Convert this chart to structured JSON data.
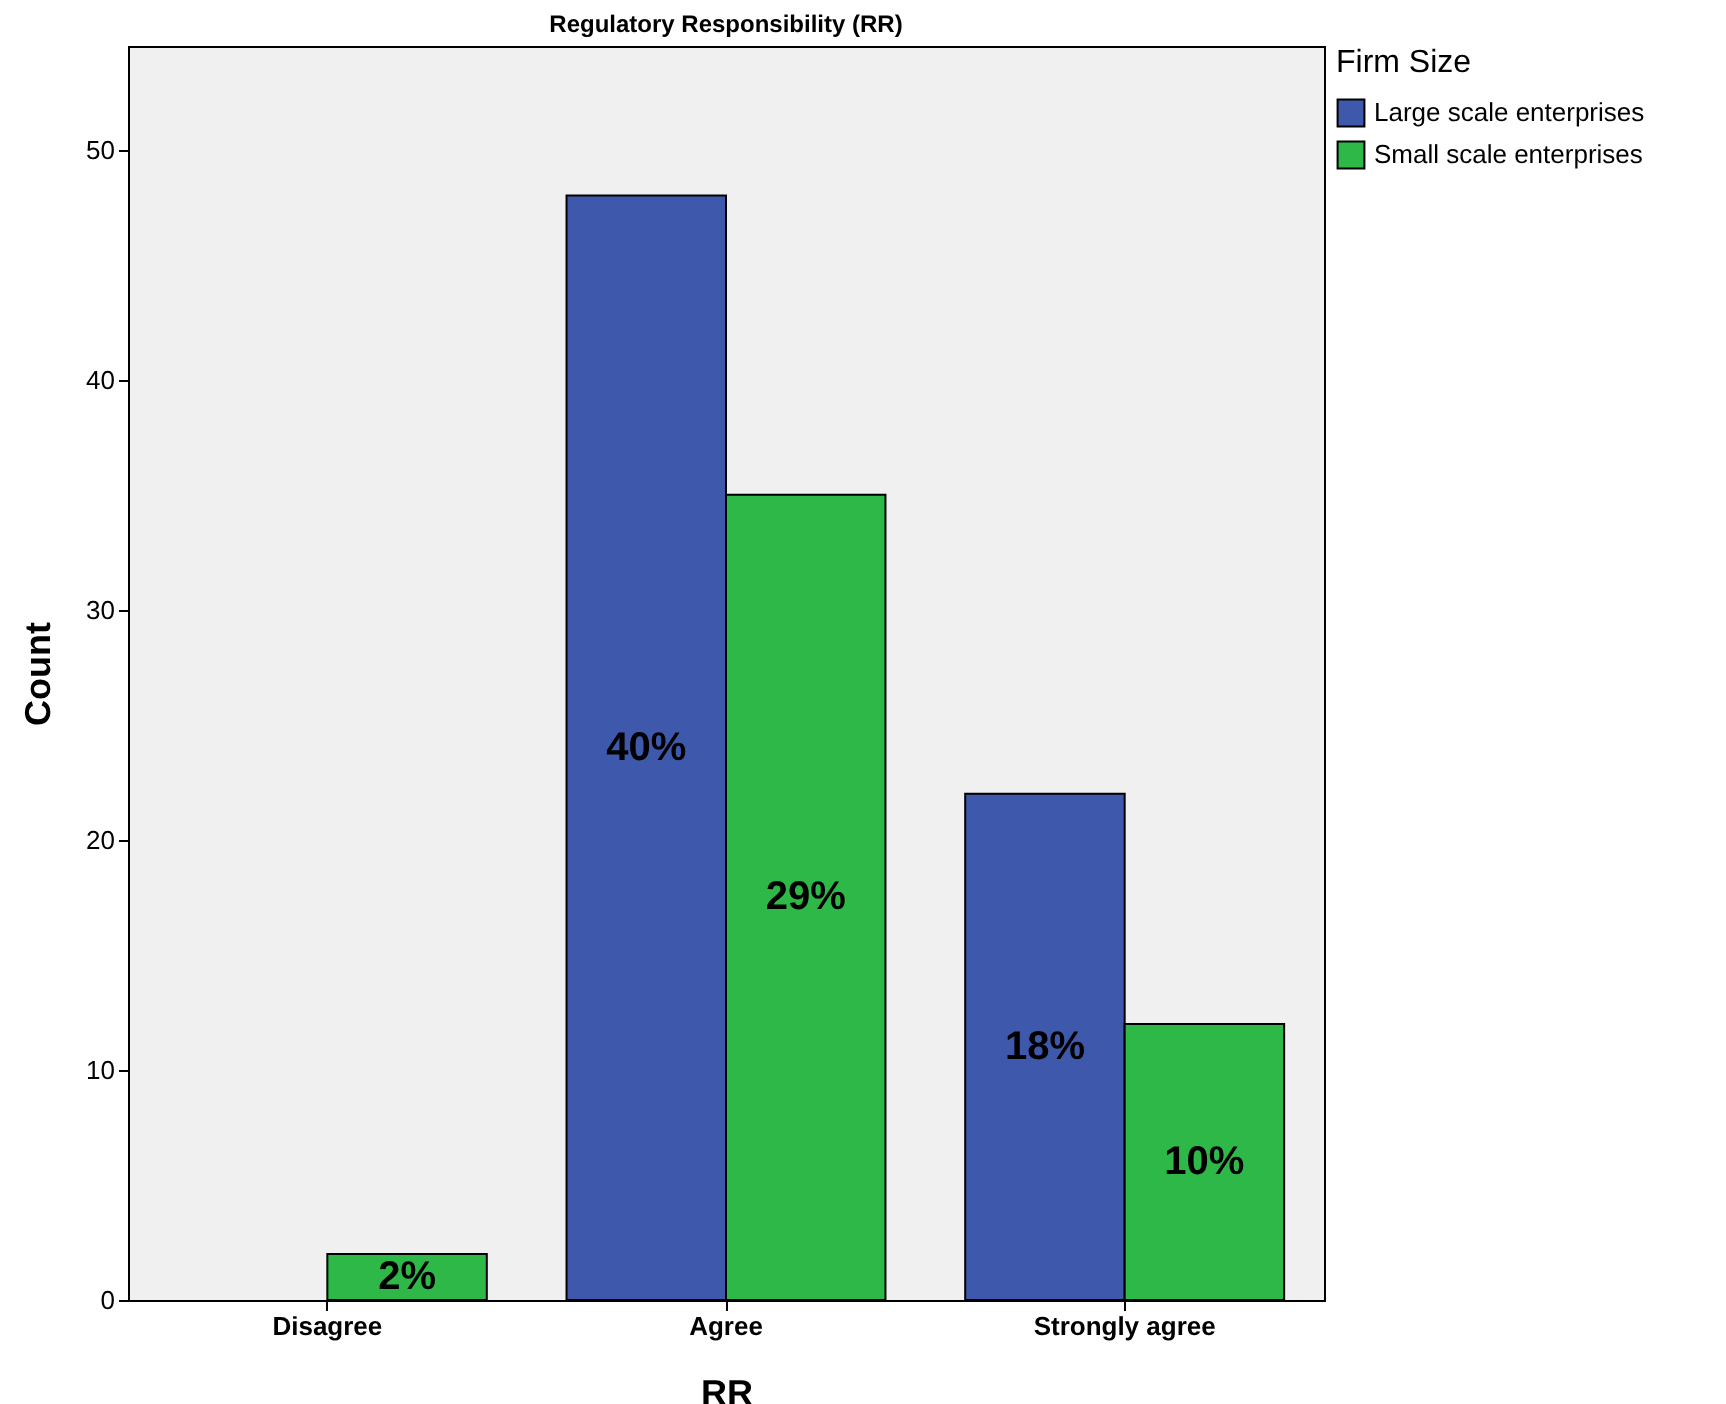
{
  "chart_data": {
    "type": "bar",
    "title": "Regulatory Responsibility (RR)",
    "xlabel": "RR",
    "ylabel": "Count",
    "legend_title": "Firm Size",
    "legend": "top right",
    "grid": false,
    "categories": [
      "Disagree",
      "Agree",
      "Strongly agree"
    ],
    "ylim": [
      0,
      54.5
    ],
    "yticks": [
      0,
      10,
      20,
      30,
      40,
      50
    ],
    "annotations": [
      {
        "text": "40%",
        "x": "Agree",
        "y": 24
      },
      {
        "text": "18%",
        "x": "Strongly agree",
        "y": 11
      },
      {
        "text": "2%",
        "x": "Disagree",
        "y": 1
      },
      {
        "text": "29%",
        "x": "Agree",
        "y": 17.5
      },
      {
        "text": "10%",
        "x": "Strongly agree",
        "y": 6
      }
    ],
    "series": [
      {
        "name": "Large scale enterprises",
        "color": "#3e58ac",
        "values": [
          null,
          48,
          22
        ]
      },
      {
        "name": "Small scale enterprises",
        "color": "#2eb848",
        "values": [
          2,
          35,
          12
        ]
      }
    ]
  }
}
